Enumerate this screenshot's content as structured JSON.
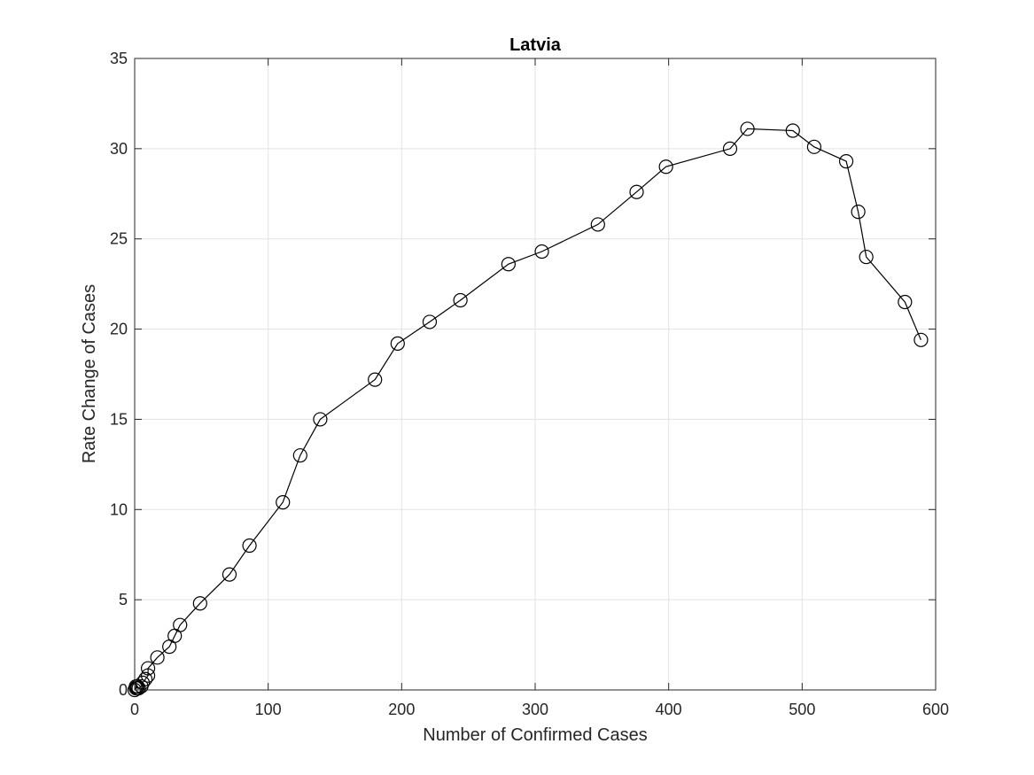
{
  "chart_data": {
    "type": "line",
    "title": "Latvia",
    "xlabel": "Number of Confirmed Cases",
    "ylabel": "Rate Change of Cases",
    "xlim": [
      0,
      600
    ],
    "ylim": [
      0,
      35
    ],
    "xticks": [
      "0",
      "100",
      "200",
      "300",
      "400",
      "500",
      "600"
    ],
    "yticks": [
      "0",
      "5",
      "10",
      "15",
      "20",
      "25",
      "30",
      "35"
    ],
    "grid": true,
    "marker": "open-circle",
    "line_color": "#000000",
    "series": [
      {
        "x": [
          0,
          1,
          1,
          2,
          2,
          3,
          5,
          6,
          8,
          10,
          10,
          17,
          26,
          30,
          34,
          49,
          71,
          86,
          111,
          124,
          139,
          180,
          197,
          221,
          244,
          280,
          305,
          347,
          376,
          398,
          446,
          459,
          493,
          509,
          533,
          542,
          548,
          577,
          589
        ],
        "y": [
          0,
          0.1,
          0.2,
          0.1,
          0.2,
          0.1,
          0.2,
          0.4,
          0.6,
          0.8,
          1.2,
          1.8,
          2.4,
          3.0,
          3.6,
          4.8,
          6.4,
          8.0,
          10.4,
          13.0,
          15.0,
          17.2,
          19.2,
          20.4,
          21.6,
          23.6,
          24.3,
          25.8,
          27.6,
          29.0,
          30.0,
          31.1,
          31.0,
          30.1,
          29.3,
          26.5,
          24.0,
          21.5,
          19.4
        ]
      }
    ]
  }
}
